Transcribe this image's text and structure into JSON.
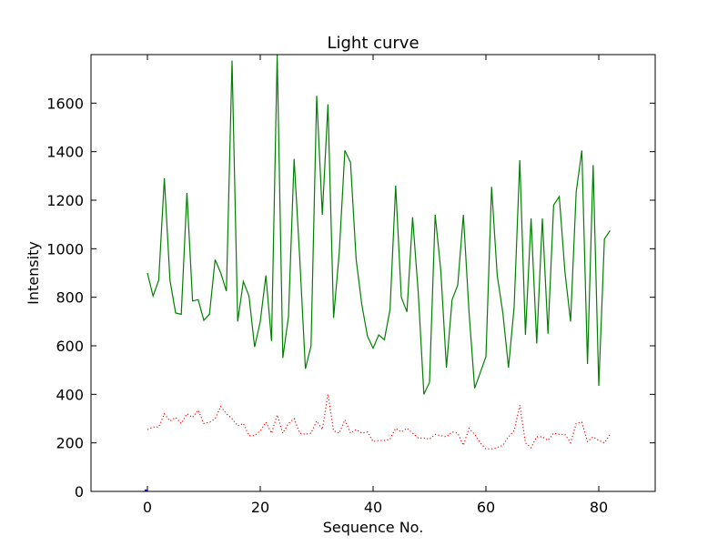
{
  "chart_data": {
    "type": "line",
    "title": "Light curve",
    "xlabel": "Sequence No.",
    "ylabel": "Intensity",
    "xlim": [
      -10,
      90
    ],
    "ylim": [
      0,
      1800
    ],
    "xticks": [
      0,
      20,
      40,
      60,
      80
    ],
    "yticks": [
      0,
      200,
      400,
      600,
      800,
      1000,
      1200,
      1400,
      1600
    ],
    "grid": false,
    "series": [
      {
        "style": "solid",
        "color": "#008000",
        "x": [
          0,
          1,
          2,
          3,
          4,
          5,
          6,
          7,
          8,
          9,
          10,
          11,
          12,
          13,
          14,
          15,
          16,
          17,
          18,
          19,
          20,
          21,
          22,
          23,
          24,
          25,
          26,
          27,
          28,
          29,
          30,
          31,
          32,
          33,
          34,
          35,
          36,
          37,
          38,
          39,
          40,
          41,
          42,
          43,
          44,
          45,
          46,
          47,
          48,
          49,
          50,
          51,
          52,
          53,
          54,
          55,
          56,
          57,
          58,
          59,
          60,
          61,
          62,
          63,
          64,
          65,
          66,
          67,
          68,
          69,
          70,
          71,
          72,
          73,
          74,
          75,
          76,
          77,
          78,
          79,
          80,
          81,
          82
        ],
        "values": [
          900,
          805,
          870,
          1290,
          870,
          735,
          730,
          1230,
          785,
          790,
          705,
          730,
          955,
          900,
          825,
          1775,
          700,
          865,
          805,
          595,
          700,
          890,
          620,
          1800,
          550,
          720,
          1370,
          960,
          505,
          600,
          1630,
          1140,
          1595,
          715,
          985,
          1405,
          1355,
          955,
          770,
          640,
          590,
          645,
          625,
          750,
          1260,
          800,
          740,
          1130,
          820,
          400,
          450,
          1140,
          910,
          510,
          790,
          850,
          1140,
          740,
          425,
          490,
          555,
          1255,
          890,
          735,
          510,
          760,
          1365,
          645,
          1125,
          610,
          1125,
          650,
          1180,
          1215,
          905,
          700,
          1235,
          1405,
          525,
          1345,
          435,
          1040,
          1075
        ]
      },
      {
        "style": "dotted",
        "color": "#ff0000",
        "x": [
          0,
          1,
          2,
          3,
          4,
          5,
          6,
          7,
          8,
          9,
          10,
          11,
          12,
          13,
          14,
          15,
          16,
          17,
          18,
          19,
          20,
          21,
          22,
          23,
          24,
          25,
          26,
          27,
          28,
          29,
          30,
          31,
          32,
          33,
          34,
          35,
          36,
          37,
          38,
          39,
          40,
          41,
          42,
          43,
          44,
          45,
          46,
          47,
          48,
          49,
          50,
          51,
          52,
          53,
          54,
          55,
          56,
          57,
          58,
          59,
          60,
          61,
          62,
          63,
          64,
          65,
          66,
          67,
          68,
          69,
          70,
          71,
          72,
          73,
          74,
          75,
          76,
          77,
          78,
          79,
          80,
          81,
          82
        ],
        "values": [
          255,
          265,
          265,
          320,
          290,
          305,
          280,
          320,
          305,
          335,
          280,
          285,
          300,
          350,
          320,
          300,
          270,
          280,
          230,
          230,
          250,
          285,
          240,
          315,
          240,
          280,
          300,
          240,
          235,
          240,
          290,
          255,
          400,
          250,
          240,
          295,
          240,
          255,
          240,
          245,
          205,
          210,
          210,
          215,
          260,
          245,
          260,
          240,
          220,
          220,
          215,
          235,
          230,
          225,
          245,
          240,
          190,
          260,
          235,
          200,
          175,
          175,
          180,
          190,
          225,
          250,
          355,
          200,
          180,
          225,
          225,
          210,
          240,
          235,
          235,
          200,
          280,
          285,
          205,
          225,
          210,
          200,
          235
        ]
      },
      {
        "style": "solid",
        "color": "#0000ff",
        "x": [
          -0.5,
          0
        ],
        "values": [
          4,
          4
        ]
      }
    ]
  }
}
